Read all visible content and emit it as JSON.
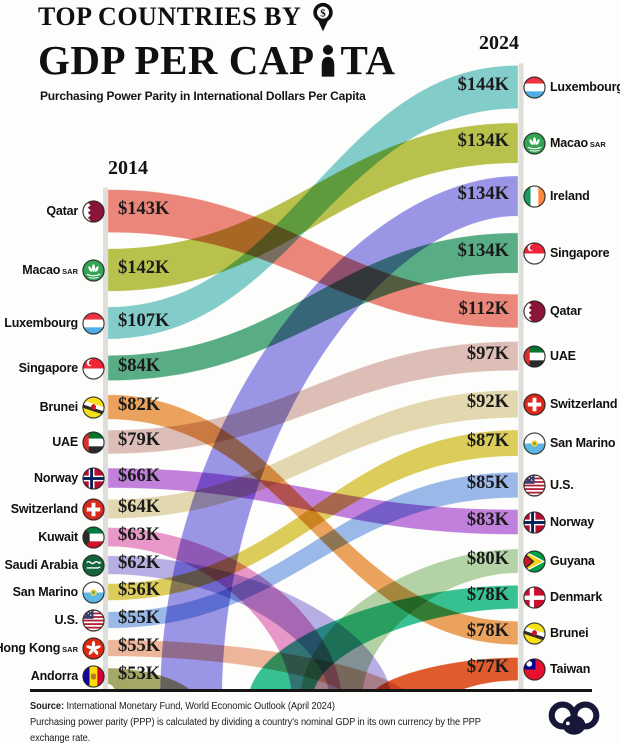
{
  "title": {
    "kicker": "TOP COUNTRIES BY",
    "main_pre": "GDP PER CAP",
    "main_post": "TA",
    "main_full": "GDP PER CAPITA",
    "subtitle": "Purchasing Power Parity in International Dollars Per Capita",
    "pin_icon": "map-pin-dollar-icon",
    "person_icon": "person-icon"
  },
  "columns": {
    "left_year": "2014",
    "right_year": "2024"
  },
  "footer": {
    "source_label": "Source:",
    "source_text": " International Monetary Fund, World Economic Outlook (April 2024)",
    "note": "Purchasing power parity (PPP) is calculated by dividing a country's nominal GDP in its own currency by the PPP exchange rate.",
    "logo": "voronoi-visual-capitalist-logo"
  },
  "chart_data": {
    "type": "sankey",
    "title": "Top Countries by GDP Per Capita",
    "subtitle": "Purchasing Power Parity in International Dollars Per Capita",
    "years": [
      "2014",
      "2024"
    ],
    "unit": "thousand international dollars per capita (PPP)",
    "left": [
      {
        "rank": 1,
        "name": "Qatar",
        "suffix": "",
        "flag": "qatar",
        "value": 143,
        "label": "$143K",
        "color": "#E87A6C"
      },
      {
        "rank": 2,
        "name": "Macao",
        "suffix": "SAR",
        "flag": "macao",
        "value": 142,
        "label": "$142K",
        "color": "#AFBA38"
      },
      {
        "rank": 3,
        "name": "Luxembourg",
        "suffix": "",
        "flag": "luxembourg",
        "value": 107,
        "label": "$107K",
        "color": "#74C6C3"
      },
      {
        "rank": 4,
        "name": "Singapore",
        "suffix": "",
        "flag": "singapore",
        "value": 84,
        "label": "$84K",
        "color": "#47A478"
      },
      {
        "rank": 5,
        "name": "Brunei",
        "suffix": "",
        "flag": "brunei",
        "value": 82,
        "label": "$82K",
        "color": "#E9984A"
      },
      {
        "rank": 6,
        "name": "UAE",
        "suffix": "",
        "flag": "uae",
        "value": 79,
        "label": "$79K",
        "color": "#D8B7AE"
      },
      {
        "rank": 7,
        "name": "Norway",
        "suffix": "",
        "flag": "norway",
        "value": 66,
        "label": "$66K",
        "color": "#BA72D8"
      },
      {
        "rank": 8,
        "name": "Switzerland",
        "suffix": "",
        "flag": "switzerland",
        "value": 64,
        "label": "$64K",
        "color": "#E0D3A6"
      },
      {
        "rank": 9,
        "name": "Kuwait",
        "suffix": "",
        "flag": "kuwait",
        "value": 63,
        "label": "$63K",
        "color": "#E58CC2"
      },
      {
        "rank": 10,
        "name": "Saudi Arabia",
        "suffix": "",
        "flag": "saudi-arabia",
        "value": 62,
        "label": "$62K",
        "color": "#AFA6E1"
      },
      {
        "rank": 11,
        "name": "San Marino",
        "suffix": "",
        "flag": "san-marino",
        "value": 56,
        "label": "$56K",
        "color": "#D8C647"
      },
      {
        "rank": 12,
        "name": "U.S.",
        "suffix": "",
        "flag": "us",
        "value": 55,
        "label": "$55K",
        "color": "#8FB1E5"
      },
      {
        "rank": 13,
        "name": "Hong Kong",
        "suffix": "SAR",
        "flag": "hong-kong",
        "value": 55,
        "label": "$55K",
        "color": "#EBAE90"
      },
      {
        "rank": 14,
        "name": "Andorra",
        "suffix": "",
        "flag": "andorra",
        "value": 53,
        "label": "$53K",
        "color": "#9A9D55"
      }
    ],
    "right": [
      {
        "rank": 1,
        "name": "Luxembourg",
        "suffix": "",
        "flag": "luxembourg",
        "value": 144,
        "label": "$144K",
        "color": "#74C6C3"
      },
      {
        "rank": 2,
        "name": "Macao",
        "suffix": "SAR",
        "flag": "macao",
        "value": 134,
        "label": "$134K",
        "color": "#AFBA38"
      },
      {
        "rank": 3,
        "name": "Ireland",
        "suffix": "",
        "flag": "ireland",
        "value": 134,
        "label": "$134K",
        "color": "#8F89E2"
      },
      {
        "rank": 4,
        "name": "Singapore",
        "suffix": "",
        "flag": "singapore",
        "value": 134,
        "label": "$134K",
        "color": "#47A478"
      },
      {
        "rank": 5,
        "name": "Qatar",
        "suffix": "",
        "flag": "qatar",
        "value": 112,
        "label": "$112K",
        "color": "#E87A6C"
      },
      {
        "rank": 6,
        "name": "UAE",
        "suffix": "",
        "flag": "uae",
        "value": 97,
        "label": "$97K",
        "color": "#D8B7AE"
      },
      {
        "rank": 7,
        "name": "Switzerland",
        "suffix": "",
        "flag": "switzerland",
        "value": 92,
        "label": "$92K",
        "color": "#E0D3A6"
      },
      {
        "rank": 8,
        "name": "San Marino",
        "suffix": "",
        "flag": "san-marino",
        "value": 87,
        "label": "$87K",
        "color": "#D6BE45"
      },
      {
        "rank": 9,
        "name": "U.S.",
        "suffix": "",
        "flag": "us",
        "value": 85,
        "label": "$85K",
        "color": "#8FB1E5"
      },
      {
        "rank": 10,
        "name": "Norway",
        "suffix": "",
        "flag": "norway",
        "value": 83,
        "label": "$83K",
        "color": "#BA72D8"
      },
      {
        "rank": 11,
        "name": "Guyana",
        "suffix": "",
        "flag": "guyana",
        "value": 80,
        "label": "$80K",
        "color": "#ABCD9C"
      },
      {
        "rank": 12,
        "name": "Denmark",
        "suffix": "",
        "flag": "denmark",
        "value": 78,
        "label": "$78K",
        "color": "#21BA86"
      },
      {
        "rank": 13,
        "name": "Brunei",
        "suffix": "",
        "flag": "brunei",
        "value": 78,
        "label": "$78K",
        "color": "#E9984A"
      },
      {
        "rank": 14,
        "name": "Taiwan",
        "suffix": "",
        "flag": "taiwan",
        "value": 77,
        "label": "$77K",
        "color": "#DD4A18"
      }
    ],
    "dropped_after_2014": [
      "Kuwait",
      "Saudi Arabia",
      "Hong Kong SAR",
      "Andorra"
    ],
    "new_in_2024": [
      "Ireland",
      "Guyana",
      "Denmark",
      "Taiwan"
    ],
    "legend_position": "none",
    "grid": false
  }
}
